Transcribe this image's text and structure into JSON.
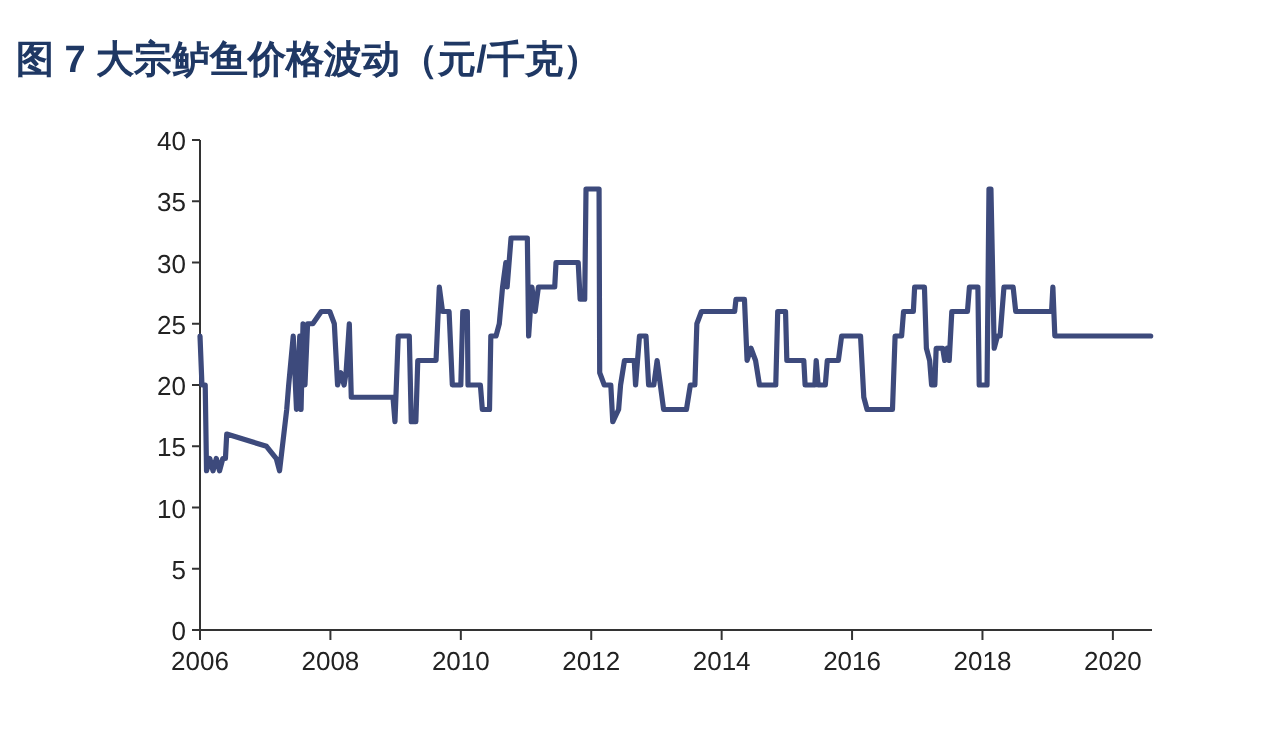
{
  "chart_data": {
    "type": "line",
    "title": "图 7  大宗鲈鱼价格波动（元/千克）",
    "xlim": [
      2006,
      2020.6
    ],
    "xticks": [
      2006,
      2008,
      2010,
      2012,
      2014,
      2016,
      2018,
      2020
    ],
    "ylim": [
      0,
      40
    ],
    "yticks": [
      0,
      5,
      10,
      15,
      20,
      25,
      30,
      35,
      40
    ],
    "grid": false,
    "marker": "none",
    "line_style": "solid",
    "series": [
      {
        "color": "#3d4a7c",
        "x": [
          2006.0,
          2006.03,
          2006.08,
          2006.1,
          2006.15,
          2006.2,
          2006.25,
          2006.3,
          2006.35,
          2006.39,
          2006.41,
          2007.02,
          2007.17,
          2007.22,
          2007.33,
          2007.36,
          2007.43,
          2007.48,
          2007.53,
          2007.55,
          2007.58,
          2007.61,
          2007.65,
          2007.73,
          2007.86,
          2007.99,
          2008.06,
          2008.11,
          2008.16,
          2008.21,
          2008.24,
          2008.29,
          2008.32,
          2008.96,
          2008.99,
          2009.04,
          2009.21,
          2009.24,
          2009.31,
          2009.34,
          2009.62,
          2009.67,
          2009.72,
          2009.82,
          2009.87,
          2010.0,
          2010.03,
          2010.1,
          2010.11,
          2010.3,
          2010.33,
          2010.44,
          2010.46,
          2010.54,
          2010.59,
          2010.64,
          2010.69,
          2010.71,
          2010.77,
          2011.02,
          2011.04,
          2011.09,
          2011.14,
          2011.19,
          2011.44,
          2011.46,
          2011.8,
          2011.83,
          2011.9,
          2011.92,
          2012.12,
          2012.13,
          2012.2,
          2012.3,
          2012.33,
          2012.42,
          2012.45,
          2012.51,
          2012.66,
          2012.68,
          2012.74,
          2012.84,
          2012.88,
          2012.96,
          2013.01,
          2013.06,
          2013.11,
          2013.46,
          2013.52,
          2013.59,
          2013.62,
          2013.69,
          2014.2,
          2014.22,
          2014.35,
          2014.39,
          2014.45,
          2014.52,
          2014.58,
          2014.83,
          2014.86,
          2014.98,
          2015.0,
          2015.26,
          2015.28,
          2015.43,
          2015.45,
          2015.48,
          2015.59,
          2015.62,
          2015.79,
          2015.84,
          2016.13,
          2016.18,
          2016.23,
          2016.62,
          2016.66,
          2016.76,
          2016.79,
          2016.94,
          2016.96,
          2017.11,
          2017.14,
          2017.19,
          2017.22,
          2017.27,
          2017.29,
          2017.39,
          2017.42,
          2017.46,
          2017.49,
          2017.53,
          2017.77,
          2017.8,
          2017.93,
          2017.95,
          2018.07,
          2018.1,
          2018.13,
          2018.18,
          2018.23,
          2018.27,
          2018.3,
          2018.33,
          2018.47,
          2018.51,
          2019.06,
          2019.08,
          2019.11,
          2020.58
        ],
        "values": [
          24,
          20,
          20,
          13,
          14,
          13,
          14,
          13,
          14,
          14,
          16,
          15,
          14,
          13,
          18,
          20,
          24,
          18,
          24,
          18,
          25,
          20,
          25,
          25,
          26,
          26,
          25,
          20,
          21,
          20,
          21,
          25,
          19,
          19,
          17,
          24,
          24,
          17,
          17,
          22,
          22,
          28,
          26,
          26,
          20,
          20,
          26,
          26,
          20,
          20,
          18,
          18,
          24,
          24,
          25,
          28,
          30,
          28,
          32,
          32,
          24,
          28,
          26,
          28,
          28,
          30,
          30,
          27,
          27,
          36,
          36,
          21,
          20,
          20,
          17,
          18,
          20,
          22,
          22,
          20,
          24,
          24,
          20,
          20,
          22,
          20,
          18,
          18,
          20,
          20,
          25,
          26,
          26,
          27,
          27,
          22,
          23,
          22,
          20,
          20,
          26,
          26,
          22,
          22,
          20,
          20,
          22,
          20,
          20,
          22,
          22,
          24,
          24,
          19,
          18,
          18,
          24,
          24,
          26,
          26,
          28,
          28,
          23,
          22,
          20,
          20,
          23,
          23,
          22,
          23,
          22,
          26,
          26,
          28,
          28,
          20,
          20,
          36,
          36,
          23,
          24,
          24,
          26,
          28,
          28,
          26,
          26,
          28,
          24,
          24
        ]
      }
    ]
  }
}
